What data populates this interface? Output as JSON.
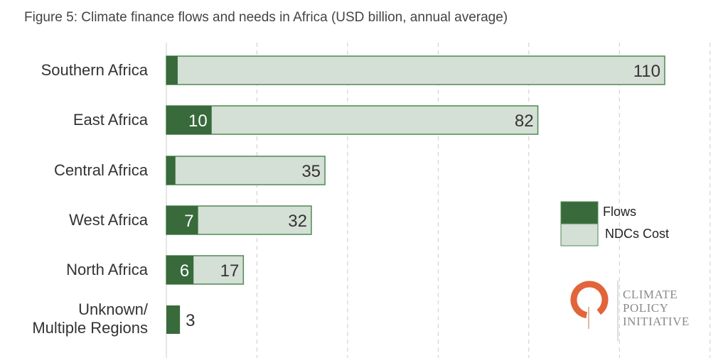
{
  "title": "Figure 5: Climate finance flows and needs in Africa (USD billion, annual average)",
  "chart_data": {
    "type": "bar",
    "orientation": "horizontal",
    "title": "Figure 5: Climate finance flows and needs in Africa (USD billion, annual average)",
    "categories": [
      "Southern Africa",
      "East Africa",
      "Central Africa",
      "West Africa",
      "North Africa",
      "Unknown/ Multiple Regions"
    ],
    "series": [
      {
        "name": "Flows",
        "values": [
          2.5,
          10,
          2,
          7,
          6,
          3
        ],
        "labels": [
          "",
          "10",
          "",
          "7",
          "6",
          "3"
        ],
        "color": "#386a3b"
      },
      {
        "name": "NDCs Cost",
        "values": [
          110,
          82,
          35,
          32,
          17,
          null
        ],
        "labels": [
          "110",
          "82",
          "35",
          "32",
          "17",
          ""
        ],
        "color": "#d4dfd5"
      }
    ],
    "xlim": [
      0,
      120
    ],
    "grid": true,
    "legend": "right",
    "xlabel": "",
    "ylabel": ""
  },
  "legend": {
    "flows": "Flows",
    "ndcs": "NDCs Cost"
  },
  "logo": {
    "line1": "CLIMATE",
    "line2": "POLICY",
    "line3": "INITIATIVE"
  }
}
